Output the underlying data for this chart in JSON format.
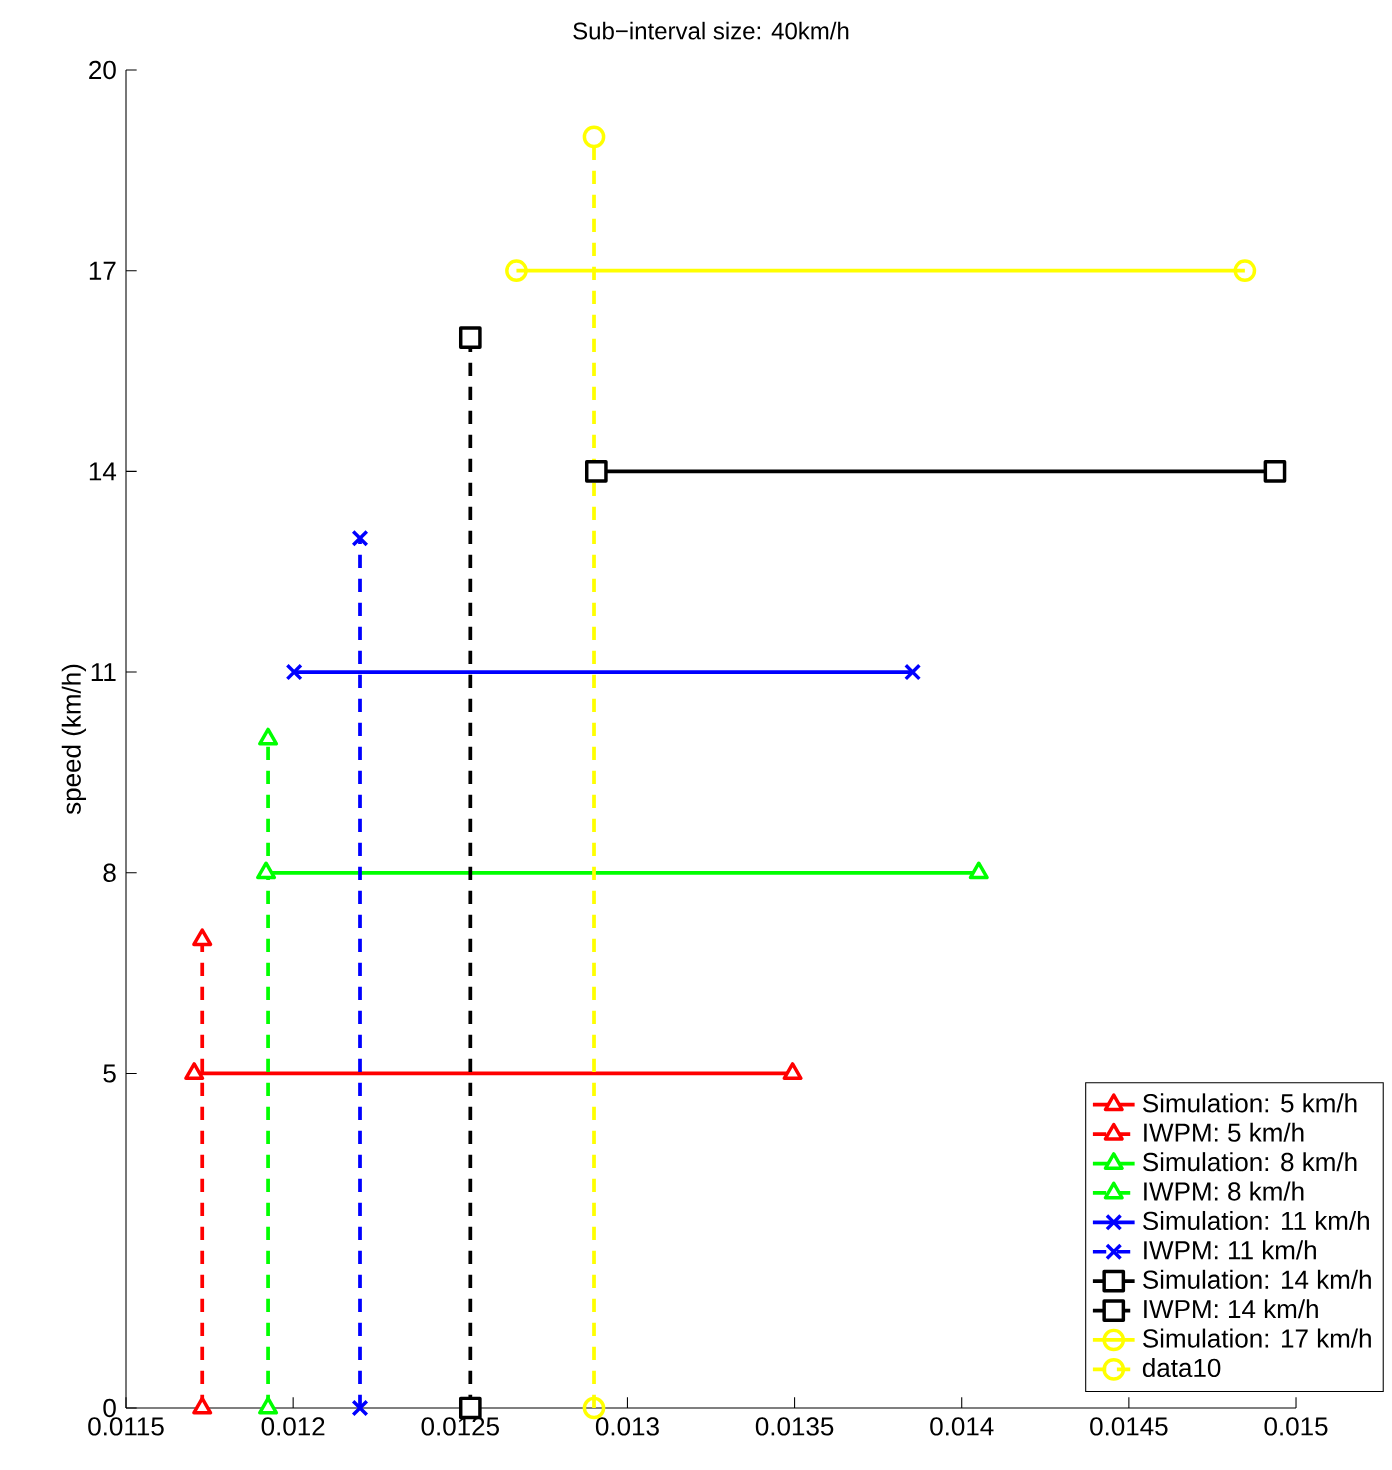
{
  "chart_data": {
    "type": "line",
    "title": "Sub−interval size: 40km/h",
    "ylabel": "speed (km/h)",
    "xlim": [
      0.0115,
      0.015
    ],
    "xticks": [
      0.0115,
      0.012,
      0.0125,
      0.013,
      0.0135,
      0.014,
      0.0145,
      0.015
    ],
    "ylim": [
      0,
      20
    ],
    "yticks": [
      0,
      5,
      8,
      11,
      14,
      17,
      20
    ],
    "grid": false,
    "legend": "bottom right",
    "series": [
      {
        "name": "Simulation: 5 km/h",
        "color": "#ff0000",
        "marker": "triangle",
        "line_style": "solid",
        "x": [
          0.011704,
          0.013494
        ],
        "values": [
          5,
          5
        ]
      },
      {
        "name": "IWPM: 5 km/h",
        "color": "#ff0000",
        "marker": "triangle",
        "line_style": "dashed",
        "x": [
          0.011728,
          0.011728
        ],
        "values": [
          0,
          7
        ]
      },
      {
        "name": "Simulation: 8 km/h",
        "color": "#00ff00",
        "marker": "triangle-down",
        "line_style": "solid",
        "x": [
          0.011919,
          0.014051
        ],
        "values": [
          8,
          8
        ]
      },
      {
        "name": "IWPM: 8 km/h",
        "color": "#00ff00",
        "marker": "triangle-down",
        "line_style": "dashed",
        "x": [
          0.011925,
          0.011925
        ],
        "values": [
          0,
          10
        ]
      },
      {
        "name": "Simulation: 11 km/h",
        "color": "#0000ff",
        "marker": "cross",
        "line_style": "solid",
        "x": [
          0.012003,
          0.013853
        ],
        "values": [
          11,
          11
        ]
      },
      {
        "name": "IWPM: 11 km/h",
        "color": "#0000ff",
        "marker": "cross",
        "line_style": "dashed",
        "x": [
          0.0122,
          0.0122
        ],
        "values": [
          0,
          13
        ]
      },
      {
        "name": "Simulation: 14 km/h",
        "color": "#000000",
        "marker": "square",
        "line_style": "solid",
        "x": [
          0.012907,
          0.014937
        ],
        "values": [
          14,
          14
        ]
      },
      {
        "name": "IWPM: 14 km/h",
        "color": "#000000",
        "marker": "square",
        "line_style": "dashed",
        "x": [
          0.01253,
          0.01253
        ],
        "values": [
          0,
          16
        ]
      },
      {
        "name": "Simulation: 17 km/h",
        "color": "#ffff00",
        "marker": "circle",
        "line_style": "solid",
        "x": [
          0.012668,
          0.014847
        ],
        "values": [
          17,
          17
        ]
      },
      {
        "name": "data10",
        "color": "#ffff00",
        "marker": "circle",
        "line_style": "dashed",
        "x": [
          0.0129,
          0.0129
        ],
        "values": [
          0,
          19
        ]
      }
    ]
  }
}
